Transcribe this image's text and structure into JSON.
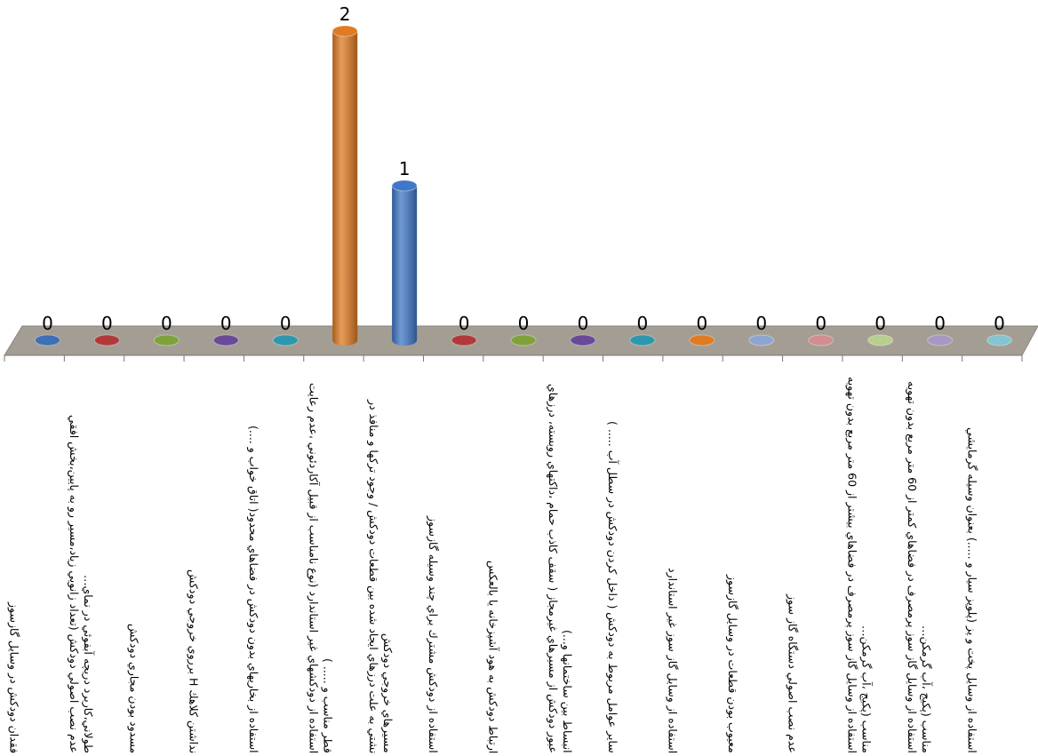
{
  "chart_data": {
    "type": "bar",
    "categories": [
      "فقدان دودكش در وسايل گازسوز",
      "عدم نصب اصولي دودكش (تعداد زانويي زياد،مسير رو به پايين،بخش افقي طولاني،كاربرد دريچه آبفوئي در نماي…",
      "مسدود بودن مجاري دودكش",
      "نداشتن كلاهك H برروي خروجي دودكش",
      "استفاده از بخاريهاي بدون دودكش در فضاهاي محدود( اتاق خواب و ....)",
      "استفاده از دودكشهاي غير استاندارد (نوع نامناسب از قبيل آكاردئوني ،عدم رعايت قطر مناسب و ..... )",
      "نشتي به علت درزهاي ايجاد شده بين قطعات دودكش / وجود تركها و منافذ در مسيرهاي خروجي دودكش",
      "استفاده از دودكش مشترك براي چند وسيله گازسوز",
      "ارتباط دودكش به هود آشپزخانه يا بالعكس",
      "عبور دودكش از مسيرهاي غيرمجاز ( سقف كاذب حمام ،داكتهاي روبسته، درزهاي انبساط بين ساختمانها و...)",
      "ساير عوامل مربوط به دودكش ( داخل كردن دودكش در سطل آب ..... )",
      "استفاده از وسايل گاز سوز غير استاندارد",
      "معيوب بودن قطعات در وسايل گازسوز",
      "عدم نصب اصولي دستگاه گاز سوز",
      "استفاده از وسايل گاز سوز پرمصرف در فضاهاي بيشتر از 60 متر مربع بدون تهويه مناسب (پكيج ،آب گرمكن…",
      "استفاده از وسايل گاز سوز پرمصرف در فضاهاي كمتر از 60 متر مربع بدون تهويه مناسب (پكيج ،آب گرمكن…",
      "استفاده از وسايل پخت و پز (پلوپز سيار و .....) بعنوان وسيله گرمايشي"
    ],
    "values": [
      0,
      0,
      0,
      0,
      0,
      2,
      1,
      0,
      0,
      0,
      0,
      0,
      0,
      0,
      0,
      0,
      0
    ],
    "colors": [
      "#3f6fb5",
      "#b03a3a",
      "#7fa23c",
      "#6a4a98",
      "#2f97ad",
      "#e07b22",
      "#3f78c8",
      "#b03a3a",
      "#7fa23c",
      "#6a4a98",
      "#2f97ad",
      "#e07b22",
      "#8ea6cf",
      "#d08e8e",
      "#b8cf8f",
      "#a797c2",
      "#86c3d3"
    ]
  }
}
